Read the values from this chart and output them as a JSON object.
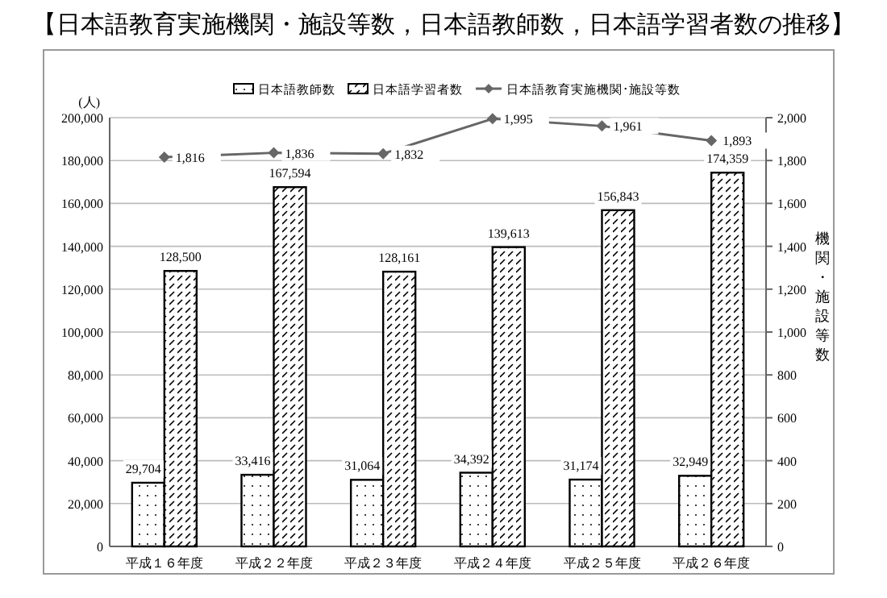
{
  "chart_data": {
    "type": "bar",
    "title": "【日本語教育実施機関・施設等数，日本語教師数，日本語学習者数の推移】",
    "ylabel": "(人)",
    "y2label": "機関・施設等数",
    "categories": [
      "平成１６年度",
      "平成２２年度",
      "平成２３年度",
      "平成２４年度",
      "平成２５年度",
      "平成２６年度"
    ],
    "series": [
      {
        "name": "日本語教師数",
        "color": "#000000",
        "values": [
          29704,
          33416,
          31064,
          34392,
          31174,
          32949
        ],
        "value_labels": [
          "29,704",
          "33,416",
          "31,064",
          "34,392",
          "31,174",
          "32,949"
        ]
      },
      {
        "name": "日本語学習者数",
        "color": "#000000",
        "values": [
          128500,
          167594,
          128161,
          139613,
          156843,
          174359
        ],
        "value_labels": [
          "128,500",
          "167,594",
          "128,161",
          "139,613",
          "156,843",
          "174,359"
        ]
      },
      {
        "name": "日本語教育実施機関･施設等数",
        "type": "line",
        "axis": "y2",
        "color": "#666666",
        "values": [
          1816,
          1836,
          1832,
          1995,
          1961,
          1893
        ],
        "value_labels": [
          "1,816",
          "1,836",
          "1,832",
          "1,995",
          "1,961",
          "1,893"
        ]
      }
    ],
    "ylim": [
      0,
      200000
    ],
    "yticks": [
      0,
      {
        "value": 20000,
        "label": "20,000"
      },
      {
        "value": 40000,
        "label": "40,000"
      },
      {
        "value": 60000,
        "label": "60,000"
      },
      {
        "value": 80000,
        "label": "80,000"
      },
      {
        "value": 100000,
        "label": "100,000"
      },
      {
        "value": 120000,
        "label": "120,000"
      },
      {
        "value": 140000,
        "label": "140,000"
      },
      {
        "value": 160000,
        "label": "160,000"
      },
      {
        "value": 180000,
        "label": "180,000"
      },
      {
        "value": 200000,
        "label": "200,000"
      }
    ],
    "y2lim": [
      0,
      2000
    ],
    "y2ticks": [
      0,
      200,
      400,
      600,
      800,
      {
        "value": 1000,
        "label": "1,000"
      },
      {
        "value": 1200,
        "label": "1,200"
      },
      {
        "value": 1400,
        "label": "1,400"
      },
      {
        "value": 1600,
        "label": "1,600"
      },
      {
        "value": 1800,
        "label": "1,800"
      },
      {
        "value": 2000,
        "label": "2,000"
      }
    ],
    "grid": "y",
    "legend": "top",
    "marker": "diamond"
  }
}
